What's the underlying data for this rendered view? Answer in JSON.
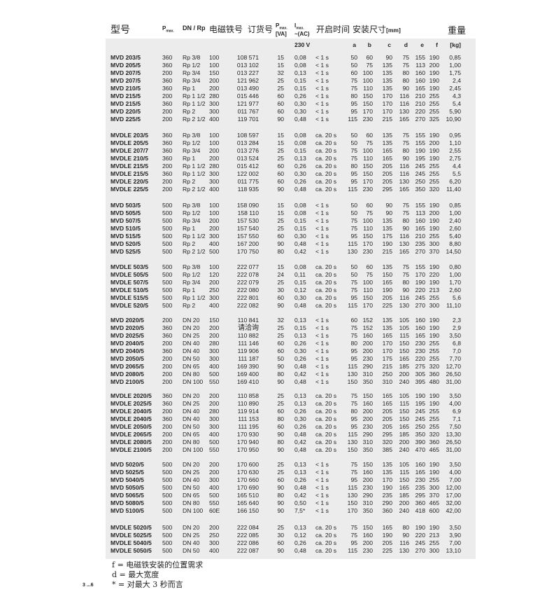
{
  "header": {
    "model": "型号",
    "pmax": "P",
    "pmax_sub": "max.",
    "dn_rp": "DN / Rp",
    "solenoid": "电磁铁号",
    "order": "订货号",
    "p_va": "P",
    "p_va_sub": "max.",
    "p_va_unit": "[VA]",
    "imax": "I",
    "imax_sub": "max.",
    "imax_ac": "~(AC)",
    "voltage": "230 V",
    "open_time": "开启时间",
    "dims": "安装尺寸",
    "dims_unit": "[mm]",
    "weight": "重量",
    "weight_unit": "[kg]",
    "dim_letters": [
      "a",
      "b",
      "c",
      "d",
      "e",
      "f"
    ]
  },
  "groups": [
    {
      "rows": [
        [
          "MVD 203/5",
          "360",
          "Rp 3/8",
          "100",
          "108 571",
          "15",
          "0,08",
          "< 1 s",
          "50",
          "60",
          "90",
          "75",
          "155",
          "190",
          "0,85"
        ],
        [
          "MVD 205/5",
          "360",
          "Rp 1/2",
          "100",
          "013 102",
          "15",
          "0,08",
          "< 1 s",
          "50",
          "75",
          "135",
          "75",
          "113",
          "200",
          "1,00"
        ],
        [
          "MVD 207/5",
          "200",
          "Rp 3/4",
          "150",
          "013 227",
          "32",
          "0,13",
          "< 1 s",
          "60",
          "100",
          "135",
          "80",
          "160",
          "190",
          "1,75"
        ],
        [
          "MVD 207/5",
          "360",
          "Rp 3/4",
          "200",
          "121 962",
          "25",
          "0,15",
          "< 1 s",
          "75",
          "100",
          "135",
          "80",
          "160",
          "190",
          "2,4"
        ],
        [
          "MVD 210/5",
          "360",
          "Rp 1",
          "200",
          "013 490",
          "25",
          "0,15",
          "< 1 s",
          "75",
          "110",
          "135",
          "90",
          "165",
          "190",
          "2,45"
        ],
        [
          "MVD 215/5",
          "200",
          "Rp 1 1/2",
          "280",
          "015 446",
          "60",
          "0,26",
          "< 1 s",
          "80",
          "150",
          "170",
          "116",
          "210",
          "255",
          "4,3"
        ],
        [
          "MVD 215/5",
          "360",
          "Rp 1 1/2",
          "300",
          "121 977",
          "60",
          "0,30",
          "< 1 s",
          "95",
          "150",
          "170",
          "116",
          "210",
          "255",
          "5,4"
        ],
        [
          "MVD 220/5",
          "200",
          "Rp 2",
          "300",
          "011 767",
          "60",
          "0,30",
          "< 1 s",
          "95",
          "170",
          "170",
          "130",
          "220",
          "255",
          "5,90"
        ],
        [
          "MVD 225/5",
          "200",
          "Rp 2 1/2",
          "400",
          "119 701",
          "90",
          "0,48",
          "< 1 s",
          "115",
          "230",
          "215",
          "165",
          "270",
          "325",
          "10,90"
        ]
      ]
    },
    {
      "rows": [
        [
          "MVDLE 203/5",
          "360",
          "Rp 3/8",
          "100",
          "108 597",
          "15",
          "0,08",
          "ca. 20 s",
          "50",
          "60",
          "135",
          "75",
          "155",
          "190",
          "0,95"
        ],
        [
          "MVDLE 205/5",
          "360",
          "Rp 1/2",
          "100",
          "013 284",
          "15",
          "0,08",
          "ca. 20 s",
          "50",
          "75",
          "135",
          "75",
          "155",
          "200",
          "1,10"
        ],
        [
          "MVDLE 207/7",
          "360",
          "Rp 3/4",
          "200",
          "013 276",
          "25",
          "0,15",
          "ca. 20 s",
          "75",
          "100",
          "165",
          "80",
          "190",
          "190",
          "2,55"
        ],
        [
          "MVDLE 210/5",
          "360",
          "Rp 1",
          "200",
          "013 524",
          "25",
          "0,13",
          "ca. 20 s",
          "75",
          "110",
          "165",
          "90",
          "195",
          "190",
          "2,75"
        ],
        [
          "MVDLE 215/5",
          "200",
          "Rp 1 1/2",
          "280",
          "015 412",
          "60",
          "0,26",
          "ca. 20 s",
          "80",
          "150",
          "205",
          "116",
          "245",
          "255",
          "4,4"
        ],
        [
          "MVDLE 215/5",
          "360",
          "Rp 1 1/2",
          "300",
          "122 002",
          "60",
          "0,30",
          "ca. 20 s",
          "95",
          "150",
          "205",
          "116",
          "245",
          "255",
          "5,5"
        ],
        [
          "MVDLE 220/5",
          "200",
          "Rp 2",
          "300",
          "011 775",
          "60",
          "0,26",
          "ca. 20 s",
          "95",
          "170",
          "205",
          "130",
          "250",
          "255",
          "6,20"
        ],
        [
          "MVDLE 225/5",
          "200",
          "Rp 2 1/2",
          "400",
          "118 935",
          "90",
          "0,48",
          "ca. 20 s",
          "115",
          "230",
          "295",
          "165",
          "350",
          "320",
          "11,40"
        ]
      ]
    },
    {
      "rows": [
        [
          "MVD 503/5",
          "500",
          "Rp 3/8",
          "100",
          "158 090",
          "15",
          "0,08",
          "< 1 s",
          "50",
          "60",
          "90",
          "75",
          "155",
          "190",
          "0,85"
        ],
        [
          "MVD 505/5",
          "500",
          "Rp 1/2",
          "100",
          "158 110",
          "15",
          "0,08",
          "< 1 s",
          "50",
          "75",
          "90",
          "75",
          "113",
          "200",
          "1,00"
        ],
        [
          "MVD 507/5",
          "500",
          "Rp 3/4",
          "200",
          "157 530",
          "25",
          "0,15",
          "< 1 s",
          "75",
          "100",
          "135",
          "80",
          "160",
          "190",
          "2,40"
        ],
        [
          "MVD 510/5",
          "500",
          "Rp 1",
          "200",
          "157 540",
          "25",
          "0,15",
          "< 1 s",
          "75",
          "110",
          "135",
          "90",
          "165",
          "190",
          "2,60"
        ],
        [
          "MVD 515/5",
          "500",
          "Rp 1 1/2",
          "300",
          "157 550",
          "60",
          "0,30",
          "< 1 s",
          "95",
          "150",
          "175",
          "116",
          "210",
          "255",
          "5,40"
        ],
        [
          "MVD 520/5",
          "500",
          "Rp 2",
          "400",
          "167 200",
          "90",
          "0,48",
          "< 1 s",
          "115",
          "170",
          "190",
          "130",
          "235",
          "300",
          "8,80"
        ],
        [
          "MVD 525/5",
          "500",
          "Rp 2 1/2",
          "500",
          "170 750",
          "80",
          "0,42",
          "< 1 s",
          "130",
          "230",
          "215",
          "165",
          "270",
          "370",
          "14,50"
        ]
      ]
    },
    {
      "rows": [
        [
          "MVDLE 503/5",
          "500",
          "Rp 3/8",
          "100",
          "222 077",
          "15",
          "0,08",
          "ca. 20 s",
          "50",
          "60",
          "135",
          "75",
          "155",
          "190",
          "0,80"
        ],
        [
          "MVDLE 505/5",
          "500",
          "Rp 1/2",
          "120",
          "222 078",
          "24",
          "0,11",
          "ca. 20 s",
          "50",
          "75",
          "150",
          "75",
          "170",
          "220",
          "1,00"
        ],
        [
          "MVDLE 507/5",
          "500",
          "Rp 3/4",
          "200",
          "222 079",
          "25",
          "0,15",
          "ca. 20 s",
          "75",
          "100",
          "165",
          "80",
          "190",
          "190",
          "1,70"
        ],
        [
          "MVDLE 510/5",
          "500",
          "Rp 1",
          "250",
          "222 080",
          "30",
          "0,12",
          "ca. 20 s",
          "75",
          "110",
          "190",
          "90",
          "220",
          "213",
          "2,60"
        ],
        [
          "MVDLE 515/5",
          "500",
          "Rp 1 1/2",
          "300",
          "222 801",
          "60",
          "0,30",
          "ca. 20 s",
          "95",
          "150",
          "205",
          "116",
          "245",
          "255",
          "5,6"
        ],
        [
          "MVDLE 520/5",
          "500",
          "Rp 2",
          "400",
          "222 082",
          "90",
          "0,48",
          "ca. 20 s",
          "115",
          "170",
          "225",
          "130",
          "270",
          "300",
          "11,10"
        ]
      ]
    },
    {
      "rows": [
        [
          "MVD 2020/5",
          "200",
          "DN 20",
          "150",
          "110 841",
          "32",
          "0,13",
          "< 1 s",
          "60",
          "152",
          "135",
          "105",
          "160",
          "190",
          "2,3"
        ],
        [
          "MVD 2020/5",
          "360",
          "DN 20",
          "200",
          "请洽询",
          "25",
          "0,15",
          "< 1 s",
          "75",
          "152",
          "135",
          "105",
          "160",
          "190",
          "2,9"
        ],
        [
          "MVD 2025/5",
          "360",
          "DN 25",
          "200",
          "110 882",
          "25",
          "0,13",
          "< 1 s",
          "75",
          "160",
          "165",
          "115",
          "165",
          "190",
          "3,50"
        ],
        [
          "MVD 2040/5",
          "200",
          "DN 40",
          "280",
          "111 146",
          "60",
          "0,26",
          "< 1 s",
          "80",
          "200",
          "170",
          "150",
          "230",
          "255",
          "6,8"
        ],
        [
          "MVD 2040/5",
          "360",
          "DN 40",
          "300",
          "119 906",
          "60",
          "0,30",
          "< 1 s",
          "95",
          "200",
          "170",
          "150",
          "230",
          "255",
          "7,0"
        ],
        [
          "MVD 2050/5",
          "200",
          "DN 50",
          "300",
          "111 187",
          "50",
          "0,26",
          "< 1 s",
          "95",
          "230",
          "175",
          "165",
          "220",
          "255",
          "7,70"
        ],
        [
          "MVD 2065/5",
          "200",
          "DN 65",
          "400",
          "169 390",
          "90",
          "0,48",
          "< 1 s",
          "115",
          "290",
          "215",
          "185",
          "275",
          "320",
          "12,70"
        ],
        [
          "MVD 2080/5",
          "200",
          "DN 80",
          "500",
          "169 400",
          "80",
          "0,42",
          "< 1 s",
          "130",
          "310",
          "250",
          "200",
          "305",
          "360",
          "26,50"
        ],
        [
          "MVD 2100/5",
          "200",
          "DN 100",
          "550",
          "169 410",
          "90",
          "0,48",
          "< 1 s",
          "150",
          "350",
          "310",
          "240",
          "395",
          "480",
          "31,00"
        ]
      ]
    },
    {
      "rows": [
        [
          "MVDLE 2020/5",
          "360",
          "DN 20",
          "200",
          "110 858",
          "25",
          "0,13",
          "ca. 20 s",
          "75",
          "150",
          "165",
          "105",
          "190",
          "190",
          "3,50"
        ],
        [
          "MVDLE 2025/5",
          "360",
          "DN 25",
          "200",
          "110 890",
          "25",
          "0,13",
          "ca. 20 s",
          "75",
          "160",
          "165",
          "115",
          "195",
          "190",
          "4,00"
        ],
        [
          "MVDLE 2040/5",
          "200",
          "DN 40",
          "280",
          "119 914",
          "60",
          "0,26",
          "ca. 20 s",
          "80",
          "200",
          "205",
          "150",
          "245",
          "255",
          "6,9"
        ],
        [
          "MVDLE 2040/5",
          "360",
          "DN 40",
          "300",
          "111 153",
          "80",
          "0,30",
          "ca. 20 s",
          "95",
          "200",
          "205",
          "150",
          "245",
          "255",
          "7,1"
        ],
        [
          "MVDLE 2050/5",
          "200",
          "DN 50",
          "300",
          "111 195",
          "60",
          "0,26",
          "ca. 20 s",
          "95",
          "230",
          "205",
          "165",
          "250",
          "255",
          "7,50"
        ],
        [
          "MVDLE 2065/5",
          "200",
          "DN 65",
          "400",
          "170 930",
          "90",
          "0,48",
          "ca. 20 s",
          "115",
          "290",
          "295",
          "185",
          "350",
          "320",
          "13,30"
        ],
        [
          "MVDLE 2080/5",
          "200",
          "DN 80",
          "500",
          "170 940",
          "80",
          "0,42",
          "ca. 20 s",
          "130",
          "310",
          "320",
          "200",
          "390",
          "360",
          "26,50"
        ],
        [
          "MVDLE 2100/5",
          "200",
          "DN 100",
          "550",
          "170 950",
          "90",
          "0,48",
          "ca. 20 s",
          "150",
          "350",
          "385",
          "240",
          "470",
          "465",
          "31,00"
        ]
      ]
    },
    {
      "rows": [
        [
          "MVD 5020/5",
          "500",
          "DN 20",
          "200",
          "170 600",
          "25",
          "0,13",
          "< 1 s",
          "75",
          "150",
          "135",
          "105",
          "160",
          "190",
          "3,50"
        ],
        [
          "MVD 5025/5",
          "500",
          "DN 25",
          "200",
          "170 630",
          "25",
          "0,13",
          "< 1 s",
          "75",
          "160",
          "135",
          "115",
          "165",
          "190",
          "4,00"
        ],
        [
          "MVD 5040/5",
          "500",
          "DN 40",
          "300",
          "170 660",
          "60",
          "0,26",
          "< 1 s",
          "95",
          "200",
          "170",
          "150",
          "230",
          "255",
          "7,00"
        ],
        [
          "MVD 5050/5",
          "500",
          "DN 50",
          "400",
          "170 690",
          "90",
          "0,48",
          "< 1 s",
          "115",
          "230",
          "190",
          "165",
          "235",
          "300",
          "12,00"
        ],
        [
          "MVD 5065/5",
          "500",
          "DN 65",
          "500",
          "165 510",
          "80",
          "0,42",
          "< 1 s",
          "130",
          "290",
          "235",
          "185",
          "295",
          "370",
          "17,00"
        ],
        [
          "MVD 5080/5",
          "500",
          "DN 80",
          "550",
          "165 640",
          "90",
          "0,50",
          "< 1 s",
          "150",
          "310",
          "290",
          "200",
          "360",
          "465",
          "32,00"
        ],
        [
          "MVD 5100/5",
          "500",
          "DN 100",
          "60E",
          "166 150",
          "90",
          "7,5*",
          "< 1 s",
          "170",
          "350",
          "360",
          "240",
          "418",
          "600",
          "42,00"
        ]
      ]
    },
    {
      "rows": [
        [
          "MVDLE 5020/5",
          "500",
          "DN 20",
          "200",
          "222 084",
          "25",
          "0,13",
          "ca. 20 s",
          "75",
          "150",
          "165",
          "80",
          "190",
          "190",
          "3,50"
        ],
        [
          "MVDLE 5025/5",
          "500",
          "DN 25",
          "250",
          "222 085",
          "30",
          "0,12",
          "ca. 20 s",
          "75",
          "160",
          "190",
          "90",
          "220",
          "213",
          "3,90"
        ],
        [
          "MVDLE 5040/5",
          "500",
          "DN 40",
          "300",
          "222 086",
          "60",
          "0,26",
          "ca. 20 s",
          "95",
          "200",
          "205",
          "116",
          "245",
          "255",
          "7,00"
        ],
        [
          "MVDLE 5050/5",
          "500",
          "DN 50",
          "400",
          "222 087",
          "90",
          "0,48",
          "ca. 20 s",
          "115",
          "230",
          "225",
          "130",
          "270",
          "300",
          "13,10"
        ]
      ]
    }
  ],
  "notes": [
    "f = 电磁铁安装的位置需求",
    "d = 最大宽度",
    "* = 对最大 3 秒而言"
  ],
  "page_number": "3 ...6"
}
